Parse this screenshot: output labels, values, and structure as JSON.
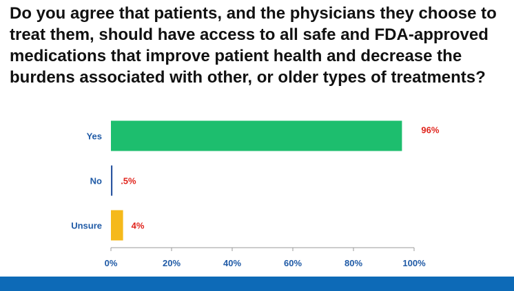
{
  "question": "Do you agree that patients, and the physicians they choose to treat them, should have access to all safe and FDA-approved medications that improve patient health and decrease the burdens associated with other, or older types of treatments?",
  "chart_data": {
    "type": "bar",
    "orientation": "horizontal",
    "title": "",
    "xlabel": "",
    "ylabel": "",
    "categories": [
      "Yes",
      "No",
      "Unsure"
    ],
    "values": [
      96,
      0.5,
      4
    ],
    "value_labels": [
      "96%",
      ".5%",
      "4%"
    ],
    "bar_colors": [
      "#1dbe6e",
      "#2b55a0",
      "#f5b91b"
    ],
    "xlim": [
      0,
      100
    ],
    "xticks": [
      "0%",
      "20%",
      "40%",
      "60%",
      "80%",
      "100%"
    ],
    "grid": false,
    "legend": "none",
    "label_color": "#1f5aa6",
    "value_label_color": "#e0231b"
  },
  "footer_color": "#0d6ab7"
}
